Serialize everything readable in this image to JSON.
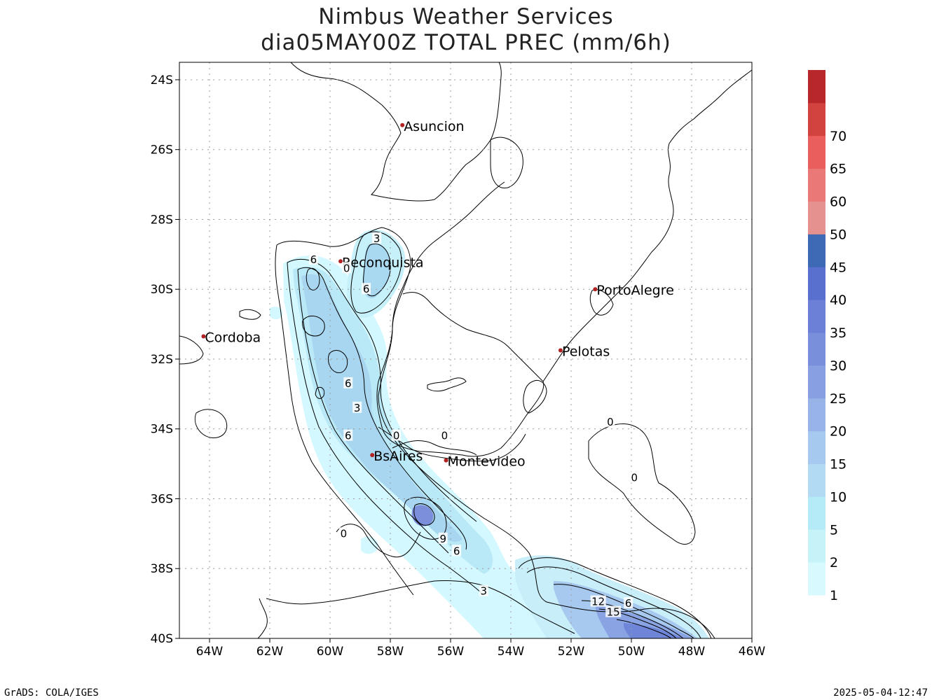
{
  "title": {
    "line1": "Nimbus Weather Services",
    "line2": "dia05MAY00Z TOTAL PREC (mm/6h)"
  },
  "map": {
    "lon_range": [
      -65,
      -46
    ],
    "lat_range": [
      -40,
      -23.5
    ],
    "lat_ticks": [
      {
        "value": -24,
        "label": "24S"
      },
      {
        "value": -26,
        "label": "26S"
      },
      {
        "value": -28,
        "label": "28S"
      },
      {
        "value": -30,
        "label": "30S"
      },
      {
        "value": -32,
        "label": "32S"
      },
      {
        "value": -34,
        "label": "34S"
      },
      {
        "value": -36,
        "label": "36S"
      },
      {
        "value": -38,
        "label": "38S"
      },
      {
        "value": -40,
        "label": "40S"
      }
    ],
    "lon_ticks": [
      {
        "value": -64,
        "label": "64W"
      },
      {
        "value": -62,
        "label": "62W"
      },
      {
        "value": -60,
        "label": "60W"
      },
      {
        "value": -58,
        "label": "58W"
      },
      {
        "value": -56,
        "label": "56W"
      },
      {
        "value": -54,
        "label": "54W"
      },
      {
        "value": -52,
        "label": "52W"
      },
      {
        "value": -50,
        "label": "50W"
      },
      {
        "value": -48,
        "label": "48W"
      },
      {
        "value": -46,
        "label": "46W"
      }
    ],
    "grid": true,
    "cities": [
      {
        "name": "Asuncion",
        "lon": -57.6,
        "lat": -25.3
      },
      {
        "name": "Reconquista",
        "lon": -59.65,
        "lat": -29.2
      },
      {
        "name": "PortoAlegre",
        "lon": -51.2,
        "lat": -30.0
      },
      {
        "name": "Cordoba",
        "lon": -64.2,
        "lat": -31.35
      },
      {
        "name": "Pelotas",
        "lon": -52.35,
        "lat": -31.75
      },
      {
        "name": "BsAires",
        "lon": -58.6,
        "lat": -34.75
      },
      {
        "name": "Montevideo",
        "lon": -56.15,
        "lat": -34.9
      }
    ],
    "contour_labels": [
      {
        "text": "3",
        "lon": -58.45,
        "lat": -28.55
      },
      {
        "text": "6",
        "lon": -60.55,
        "lat": -29.15
      },
      {
        "text": "0",
        "lon": -59.45,
        "lat": -29.4
      },
      {
        "text": "6",
        "lon": -58.8,
        "lat": -30.0
      },
      {
        "text": "6",
        "lon": -59.4,
        "lat": -32.7
      },
      {
        "text": "3",
        "lon": -59.1,
        "lat": -33.4
      },
      {
        "text": "6",
        "lon": -59.4,
        "lat": -34.2
      },
      {
        "text": "0",
        "lon": -57.8,
        "lat": -34.2
      },
      {
        "text": "0",
        "lon": -56.2,
        "lat": -34.2
      },
      {
        "text": "0",
        "lon": -50.7,
        "lat": -33.8
      },
      {
        "text": "0",
        "lon": -49.9,
        "lat": -35.4
      },
      {
        "text": "0",
        "lon": -59.55,
        "lat": -37.0
      },
      {
        "text": "9",
        "lon": -56.25,
        "lat": -37.15
      },
      {
        "text": "6",
        "lon": -55.8,
        "lat": -37.5
      },
      {
        "text": "3",
        "lon": -54.9,
        "lat": -38.65
      },
      {
        "text": "12",
        "lon": -51.1,
        "lat": -38.95
      },
      {
        "text": "6",
        "lon": -50.1,
        "lat": -39.0
      },
      {
        "text": "15",
        "lon": -50.6,
        "lat": -39.25
      }
    ]
  },
  "colorbar": {
    "levels": [
      1,
      2,
      5,
      10,
      15,
      20,
      25,
      30,
      35,
      40,
      45,
      50,
      60,
      65,
      70
    ],
    "colors": [
      "#d8faff",
      "#c6f3f8",
      "#b4ebf7",
      "#b3daf3",
      "#a6c9ef",
      "#98b3e8",
      "#889fe2",
      "#7a8fdc",
      "#6b80d6",
      "#5a70cf",
      "#3d69b5",
      "#e59190",
      "#e97877",
      "#ea5f5e",
      "#d2433f",
      "#b8282a"
    ]
  },
  "footer": {
    "left": "GrADS: COLA/IGES",
    "right": "2025-05-04-12:47"
  }
}
